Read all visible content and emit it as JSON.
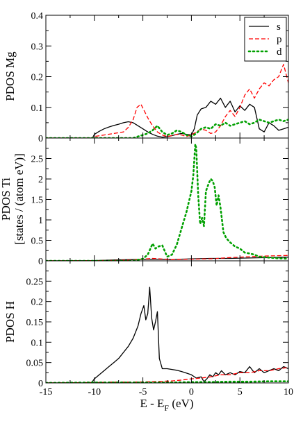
{
  "chart_data": {
    "type": "line",
    "xlabel": {
      "main": "E - E",
      "sub": "F",
      "unit": " (eV)"
    },
    "xlim": [
      -15,
      10
    ],
    "x_ticks": [
      -15,
      -10,
      -5,
      0,
      5,
      10
    ],
    "x_tick_labels": [
      "-15",
      "-10",
      "-5",
      "0",
      "5",
      "10"
    ],
    "legend": {
      "position": "top-right",
      "entries": [
        {
          "label": "s",
          "color": "#000000",
          "style": "solid"
        },
        {
          "label": "p",
          "color": "#ff0000",
          "style": "dashed"
        },
        {
          "label": "d",
          "color": "#00a000",
          "style": "dotted"
        }
      ]
    },
    "panels": [
      {
        "ylabel": [
          "PDOS Mg"
        ],
        "ylim": [
          0,
          0.4
        ],
        "y_ticks": [
          0,
          0.1,
          0.2,
          0.3,
          0.4
        ],
        "y_tick_labels": [
          "0",
          "0.1",
          "0.2",
          "0.3",
          "0.4"
        ],
        "series": [
          {
            "name": "s",
            "x": [
              -15,
              -10.2,
              -10,
              -9.5,
              -9,
              -8.5,
              -8,
              -7.5,
              -7,
              -6.5,
              -6,
              -5.5,
              -5,
              -4.5,
              -4,
              -3.5,
              -3,
              -2.5,
              -2,
              -1.5,
              -1,
              -0.5,
              0,
              0.3,
              0.6,
              1,
              1.5,
              2,
              2.5,
              3,
              3.5,
              4,
              4.5,
              5,
              5.5,
              6,
              6.5,
              7,
              7.5,
              8,
              8.5,
              9,
              9.5,
              10
            ],
            "y": [
              0,
              0,
              0.012,
              0.022,
              0.03,
              0.036,
              0.041,
              0.045,
              0.05,
              0.053,
              0.05,
              0.04,
              0.03,
              0.02,
              0.012,
              0.006,
              0.003,
              0.004,
              0.008,
              0.012,
              0.015,
              0.012,
              0.01,
              0.03,
              0.075,
              0.095,
              0.1,
              0.12,
              0.11,
              0.13,
              0.1,
              0.12,
              0.085,
              0.105,
              0.09,
              0.11,
              0.1,
              0.03,
              0.02,
              0.05,
              0.04,
              0.025,
              0.03,
              0.035
            ]
          },
          {
            "name": "p",
            "x": [
              -15,
              -10.2,
              -10,
              -9,
              -8,
              -7,
              -6.5,
              -6,
              -5.6,
              -5.2,
              -4.8,
              -4.4,
              -4,
              -3.5,
              -3,
              -2.5,
              -2,
              -1.5,
              -1,
              -0.5,
              0,
              0.5,
              1,
              1.5,
              2,
              2.5,
              3,
              3.5,
              4,
              4.5,
              5,
              5.5,
              6,
              6.5,
              7,
              7.5,
              8,
              8.5,
              9,
              9.5,
              10
            ],
            "y": [
              0,
              0,
              0.005,
              0.01,
              0.015,
              0.02,
              0.035,
              0.06,
              0.1,
              0.11,
              0.085,
              0.06,
              0.04,
              0.02,
              0.01,
              0.005,
              0.008,
              0.012,
              0.01,
              0.005,
              0.01,
              0.02,
              0.03,
              0.025,
              0.015,
              0.02,
              0.04,
              0.07,
              0.09,
              0.07,
              0.1,
              0.14,
              0.16,
              0.13,
              0.16,
              0.18,
              0.17,
              0.19,
              0.2,
              0.24,
              0.18
            ]
          },
          {
            "name": "d",
            "x": [
              -15,
              -6,
              -5.5,
              -5,
              -4.5,
              -4,
              -3.5,
              -3,
              -2.5,
              -2,
              -1.5,
              -1,
              -0.5,
              0,
              0.5,
              1,
              1.5,
              2,
              2.5,
              3,
              3.5,
              4,
              4.5,
              5,
              5.5,
              6,
              6.5,
              7,
              7.5,
              8,
              8.5,
              9,
              9.5,
              10
            ],
            "y": [
              0,
              0,
              0.005,
              0.01,
              0.015,
              0.025,
              0.04,
              0.02,
              0.01,
              0.015,
              0.025,
              0.02,
              0.01,
              0.005,
              0.015,
              0.03,
              0.035,
              0.03,
              0.045,
              0.04,
              0.05,
              0.04,
              0.045,
              0.05,
              0.055,
              0.045,
              0.05,
              0.06,
              0.055,
              0.05,
              0.055,
              0.06,
              0.055,
              0.06
            ]
          }
        ]
      },
      {
        "ylabel": [
          "PDOS Ti",
          "[states / (atom eV)]"
        ],
        "ylim": [
          0,
          3
        ],
        "y_ticks": [
          0,
          0.5,
          1,
          1.5,
          2,
          2.5
        ],
        "y_tick_labels": [
          "0",
          "0.5",
          "1",
          "1.5",
          "2",
          "2.5"
        ],
        "series": [
          {
            "name": "s",
            "x": [
              -15,
              -10,
              -8,
              -6,
              -4,
              -2,
              0,
              2,
              4,
              6,
              8,
              10
            ],
            "y": [
              0,
              0.005,
              0.02,
              0.03,
              0.04,
              0.03,
              0.05,
              0.06,
              0.06,
              0.07,
              0.08,
              0.09
            ]
          },
          {
            "name": "p",
            "x": [
              -15,
              -10,
              -8,
              -6,
              -4,
              -2,
              0,
              2,
              4,
              6,
              8,
              10
            ],
            "y": [
              0,
              0.005,
              0.01,
              0.02,
              0.06,
              0.03,
              0.04,
              0.05,
              0.08,
              0.1,
              0.12,
              0.13
            ]
          },
          {
            "name": "d",
            "x": [
              -15,
              -6,
              -5,
              -4.5,
              -4,
              -3.7,
              -3.4,
              -3,
              -2.5,
              -2,
              -1.5,
              -1,
              -0.5,
              0,
              0.2,
              0.4,
              0.5,
              0.7,
              0.9,
              1.1,
              1.3,
              1.5,
              1.8,
              2.0,
              2.2,
              2.4,
              2.6,
              2.8,
              3.0,
              3.3,
              3.6,
              4,
              4.5,
              5,
              5.5,
              6,
              6.5,
              7,
              8,
              9,
              10
            ],
            "y": [
              0,
              0,
              0.05,
              0.15,
              0.42,
              0.3,
              0.35,
              0.38,
              0.1,
              0.15,
              0.4,
              0.8,
              1.2,
              1.7,
              2.1,
              2.85,
              2.75,
              1.6,
              0.9,
              1.05,
              0.85,
              1.7,
              1.9,
              2.0,
              1.95,
              1.8,
              1.35,
              1.6,
              1.3,
              0.7,
              0.55,
              0.45,
              0.35,
              0.3,
              0.2,
              0.18,
              0.15,
              0.1,
              0.08,
              0.06,
              0.05
            ]
          }
        ]
      },
      {
        "ylabel": [
          "PDOS H"
        ],
        "ylim": [
          0,
          0.3
        ],
        "y_ticks": [
          0,
          0.05,
          0.1,
          0.15,
          0.2,
          0.25
        ],
        "y_tick_labels": [
          "0",
          "0.05",
          "0.1",
          "0.15",
          "0.2",
          "0.25"
        ],
        "series": [
          {
            "name": "s",
            "x": [
              -15,
              -10.3,
              -10,
              -9.5,
              -9,
              -8.5,
              -8,
              -7.5,
              -7,
              -6.5,
              -6,
              -5.5,
              -5.2,
              -4.9,
              -4.7,
              -4.5,
              -4.3,
              -4.1,
              -3.9,
              -3.7,
              -3.5,
              -3.3,
              -3.0,
              -2.5,
              -2,
              -1.5,
              -1,
              -0.5,
              0,
              0.5,
              1,
              1.3,
              1.6,
              1.9,
              2.2,
              2.5,
              2.8,
              3.1,
              3.5,
              4,
              4.5,
              5,
              5.5,
              6,
              6.5,
              7,
              7.5,
              8,
              8.5,
              9,
              9.5,
              10
            ],
            "y": [
              0,
              0,
              0.01,
              0.02,
              0.03,
              0.04,
              0.05,
              0.06,
              0.075,
              0.09,
              0.11,
              0.14,
              0.17,
              0.19,
              0.155,
              0.17,
              0.235,
              0.16,
              0.13,
              0.15,
              0.175,
              0.06,
              0.035,
              0.035,
              0.033,
              0.031,
              0.028,
              0.024,
              0.02,
              0.012,
              0.015,
              0.003,
              0.01,
              0.02,
              0.015,
              0.025,
              0.02,
              0.03,
              0.02,
              0.025,
              0.02,
              0.028,
              0.025,
              0.04,
              0.025,
              0.035,
              0.025,
              0.03,
              0.035,
              0.03,
              0.04,
              0.035
            ]
          },
          {
            "name": "p",
            "x": [
              -15,
              -10,
              -8,
              -6,
              -4,
              -3,
              -2,
              -1,
              0,
              1,
              2,
              3,
              4,
              5,
              6,
              7,
              8,
              9,
              10
            ],
            "y": [
              0,
              0.001,
              0.002,
              0.002,
              0.003,
              0.004,
              0.005,
              0.007,
              0.01,
              0.012,
              0.015,
              0.02,
              0.02,
              0.025,
              0.025,
              0.03,
              0.03,
              0.035,
              0.038
            ]
          },
          {
            "name": "d",
            "x": [
              -15,
              -10,
              -6,
              -2,
              0,
              2,
              4,
              6,
              8,
              10
            ],
            "y": [
              0,
              0.001,
              0.001,
              0.001,
              0.002,
              0.002,
              0.003,
              0.003,
              0.004,
              0.004
            ]
          }
        ]
      }
    ]
  }
}
